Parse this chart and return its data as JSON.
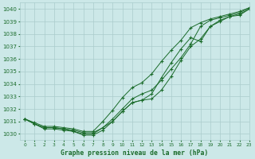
{
  "title": "Graphe pression niveau de la mer (hPa)",
  "background_color": "#cce8e8",
  "grid_color": "#aacccc",
  "line_color": "#1a6b2a",
  "xlim": [
    -0.5,
    23
  ],
  "ylim": [
    1029.5,
    1040.5
  ],
  "yticks": [
    1030,
    1031,
    1032,
    1033,
    1034,
    1035,
    1036,
    1037,
    1038,
    1039,
    1040
  ],
  "xticks": [
    0,
    1,
    2,
    3,
    4,
    5,
    6,
    7,
    8,
    9,
    10,
    11,
    12,
    13,
    14,
    15,
    16,
    17,
    18,
    19,
    20,
    21,
    22,
    23
  ],
  "series": [
    [
      1031.2,
      1030.8,
      1030.5,
      1030.5,
      1030.4,
      1030.3,
      1030.1,
      1030.1,
      1030.5,
      1031.0,
      1031.8,
      1032.5,
      1032.7,
      1032.8,
      1033.5,
      1034.6,
      1035.9,
      1037.0,
      1037.6,
      1038.6,
      1039.0,
      1039.4,
      1039.5,
      1040.0
    ],
    [
      1031.2,
      1030.8,
      1030.5,
      1030.5,
      1030.4,
      1030.2,
      1030.0,
      1030.0,
      1030.5,
      1031.2,
      1032.0,
      1032.8,
      1033.2,
      1033.5,
      1034.3,
      1035.2,
      1036.1,
      1037.2,
      1038.6,
      1039.1,
      1039.3,
      1039.5,
      1039.7,
      1040.1
    ],
    [
      1031.2,
      1030.9,
      1030.6,
      1030.6,
      1030.5,
      1030.4,
      1030.2,
      1030.2,
      1031.0,
      1031.9,
      1032.9,
      1033.7,
      1034.1,
      1034.8,
      1035.8,
      1036.7,
      1037.5,
      1038.5,
      1038.9,
      1039.2,
      1039.4,
      1039.6,
      1039.8,
      1040.1
    ],
    [
      1031.2,
      1030.8,
      1030.4,
      1030.4,
      1030.3,
      1030.2,
      1029.9,
      1029.9,
      1030.3,
      1031.0,
      1031.8,
      1032.5,
      1032.7,
      1033.2,
      1034.5,
      1035.7,
      1036.8,
      1037.7,
      1037.4,
      1038.6,
      1039.1,
      1039.4,
      1039.6,
      1040.0
    ]
  ]
}
